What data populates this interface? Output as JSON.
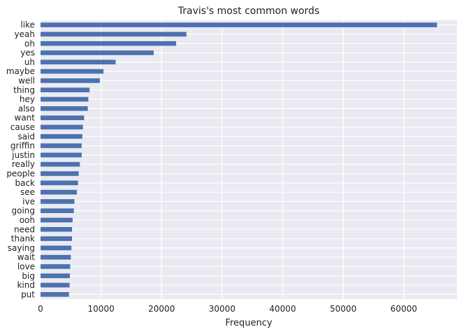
{
  "chart_data": {
    "type": "bar",
    "orientation": "horizontal",
    "title": "Travis's most common words",
    "xlabel": "Frequency",
    "ylabel": "",
    "xlim": [
      0,
      68800
    ],
    "xticks": [
      0,
      10000,
      20000,
      30000,
      40000,
      50000,
      60000
    ],
    "grid": true,
    "bar_color": "#4C72B0",
    "background_color": "#EAEAF2",
    "grid_color": "#FFFFFF",
    "categories": [
      "like",
      "yeah",
      "oh",
      "yes",
      "uh",
      "maybe",
      "well",
      "thing",
      "hey",
      "also",
      "want",
      "cause",
      "said",
      "griffin",
      "justin",
      "really",
      "people",
      "back",
      "see",
      "ive",
      "going",
      "ooh",
      "need",
      "thank",
      "saying",
      "wait",
      "love",
      "big",
      "kind",
      "put"
    ],
    "values": [
      65500,
      24100,
      22400,
      18700,
      12400,
      10400,
      9800,
      8100,
      7900,
      7800,
      7200,
      7000,
      6900,
      6800,
      6800,
      6500,
      6300,
      6200,
      6000,
      5600,
      5500,
      5300,
      5200,
      5200,
      5100,
      5000,
      4900,
      4850,
      4800,
      4700
    ]
  }
}
